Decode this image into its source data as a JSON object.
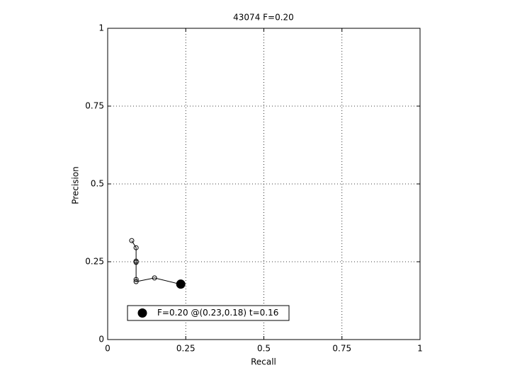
{
  "chart_data": {
    "type": "line",
    "title": "43074 F=0.20",
    "x_label": "Recall",
    "y_label": "Precision",
    "xlim": [
      0,
      1
    ],
    "ylim": [
      0,
      1
    ],
    "xticks": [
      0,
      0.25,
      0.5,
      0.75,
      1
    ],
    "yticks": [
      0,
      0.25,
      0.5,
      0.75,
      1
    ],
    "grid": true,
    "series": [
      {
        "color": "#000000",
        "marker": "open-circle",
        "x": [
          0.077,
          0.091,
          0.091,
          0.091,
          0.091,
          0.091,
          0.15,
          0.236
        ],
        "values": [
          0.318,
          0.295,
          0.252,
          0.248,
          0.193,
          0.186,
          0.198,
          0.177
        ]
      },
      {
        "name": "F=0.20 @(0.23,0.18) t=0.16",
        "color": "#000000",
        "marker": "filled-circle",
        "x": [
          0.234
        ],
        "values": [
          0.178
        ]
      }
    ],
    "legend": "lower-left"
  }
}
